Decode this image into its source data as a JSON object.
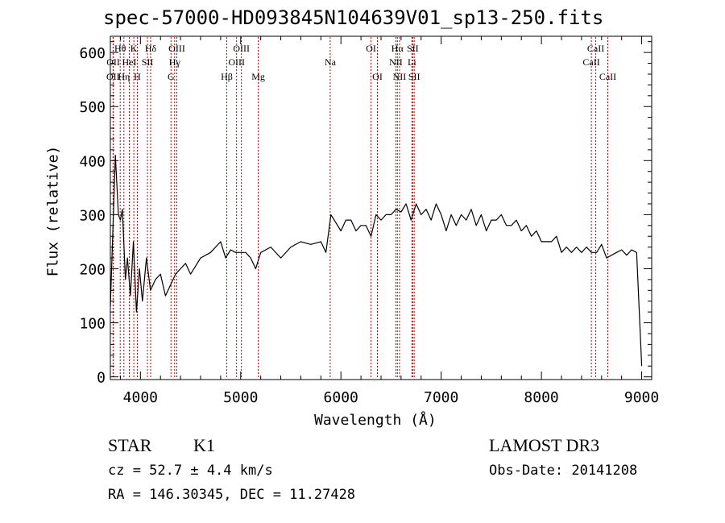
{
  "chart_data": {
    "type": "line",
    "title": "spec-57000-HD093845N104639V01_sp13-250.fits",
    "xlabel": "Wavelength (Å)",
    "ylabel": "Flux (relative)",
    "xlim": [
      3700,
      9100
    ],
    "ylim": [
      -5,
      630
    ],
    "xticks": [
      4000,
      5000,
      6000,
      7000,
      8000,
      9000
    ],
    "yticks": [
      0,
      100,
      200,
      300,
      400,
      500,
      600
    ],
    "grid": false,
    "legend": "none",
    "line_color": "#000000",
    "marker_color": "#c00000",
    "series": [
      {
        "x": [
          3700,
          3750,
          3780,
          3800,
          3820,
          3850,
          3870,
          3900,
          3930,
          3960,
          3990,
          4020,
          4060,
          4100,
          4150,
          4200,
          4250,
          4300,
          4350,
          4400,
          4450,
          4500,
          4600,
          4700,
          4800,
          4850,
          4900,
          4950,
          5000,
          5050,
          5100,
          5150,
          5200,
          5300,
          5400,
          5500,
          5600,
          5700,
          5800,
          5850,
          5900,
          5950,
          6000,
          6050,
          6100,
          6150,
          6200,
          6250,
          6300,
          6350,
          6400,
          6450,
          6500,
          6550,
          6600,
          6650,
          6700,
          6750,
          6800,
          6850,
          6900,
          6950,
          7000,
          7050,
          7100,
          7150,
          7200,
          7250,
          7300,
          7350,
          7400,
          7450,
          7500,
          7550,
          7600,
          7650,
          7700,
          7750,
          7800,
          7850,
          7900,
          7950,
          8000,
          8050,
          8100,
          8150,
          8200,
          8250,
          8300,
          8350,
          8400,
          8450,
          8500,
          8550,
          8600,
          8650,
          8700,
          8750,
          8800,
          8850,
          8900,
          8950,
          9000
        ],
        "y": [
          130,
          410,
          300,
          290,
          310,
          180,
          220,
          150,
          250,
          120,
          200,
          140,
          220,
          160,
          180,
          190,
          150,
          170,
          190,
          200,
          210,
          190,
          220,
          230,
          250,
          220,
          235,
          230,
          230,
          230,
          220,
          200,
          230,
          240,
          220,
          240,
          250,
          245,
          250,
          230,
          300,
          285,
          270,
          290,
          290,
          270,
          280,
          280,
          260,
          300,
          290,
          300,
          300,
          310,
          305,
          320,
          290,
          320,
          300,
          310,
          290,
          320,
          300,
          270,
          300,
          280,
          300,
          290,
          310,
          280,
          300,
          270,
          290,
          290,
          300,
          280,
          280,
          290,
          270,
          280,
          260,
          270,
          250,
          250,
          250,
          260,
          230,
          240,
          230,
          240,
          230,
          240,
          230,
          230,
          245,
          220,
          225,
          230,
          235,
          225,
          235,
          230,
          20
        ]
      }
    ],
    "lines": [
      {
        "label": "OII",
        "x": 3727,
        "row": 2
      },
      {
        "label": "OII",
        "x": 3729,
        "row": 1
      },
      {
        "label": "Hη",
        "x": 3835,
        "row": 2
      },
      {
        "label": "Hθ",
        "x": 3798,
        "row": 0
      },
      {
        "label": "HeI",
        "x": 3889,
        "row": 1
      },
      {
        "label": "K",
        "x": 3934,
        "row": 0
      },
      {
        "label": "H",
        "x": 3969,
        "row": 2
      },
      {
        "label": "SII",
        "x": 4070,
        "row": 1
      },
      {
        "label": "Hδ",
        "x": 4102,
        "row": 0
      },
      {
        "label": "G",
        "x": 4305,
        "row": 2
      },
      {
        "label": "Hγ",
        "x": 4341,
        "row": 1
      },
      {
        "label": "OIII",
        "x": 4363,
        "row": 0
      },
      {
        "label": "Hβ",
        "x": 4861,
        "row": 2
      },
      {
        "label": "OIII",
        "x": 4959,
        "row": 1
      },
      {
        "label": "OIII",
        "x": 5007,
        "row": 0
      },
      {
        "label": "Mg",
        "x": 5175,
        "row": 2
      },
      {
        "label": "Na",
        "x": 5893,
        "row": 1
      },
      {
        "label": "OI",
        "x": 6300,
        "row": 0
      },
      {
        "label": "OI",
        "x": 6364,
        "row": 2
      },
      {
        "label": "NII",
        "x": 6548,
        "row": 1
      },
      {
        "label": "Hα",
        "x": 6563,
        "row": 0
      },
      {
        "label": "NII",
        "x": 6584,
        "row": 2
      },
      {
        "label": "Li",
        "x": 6708,
        "row": 1
      },
      {
        "label": "SII",
        "x": 6716,
        "row": 0
      },
      {
        "label": "SII",
        "x": 6731,
        "row": 2
      },
      {
        "label": "CaII",
        "x": 8498,
        "row": 1
      },
      {
        "label": "CaII",
        "x": 8542,
        "row": 0
      },
      {
        "label": "CaII",
        "x": 8662,
        "row": 2
      }
    ]
  },
  "info": {
    "class": "STAR",
    "subclass": "K1",
    "survey": "LAMOST DR3",
    "cz": "cz = 52.7 ± 4.4 km/s",
    "obs_date": "Obs-Date: 20141208",
    "coords": "RA = 146.30345, DEC =  11.27428"
  }
}
